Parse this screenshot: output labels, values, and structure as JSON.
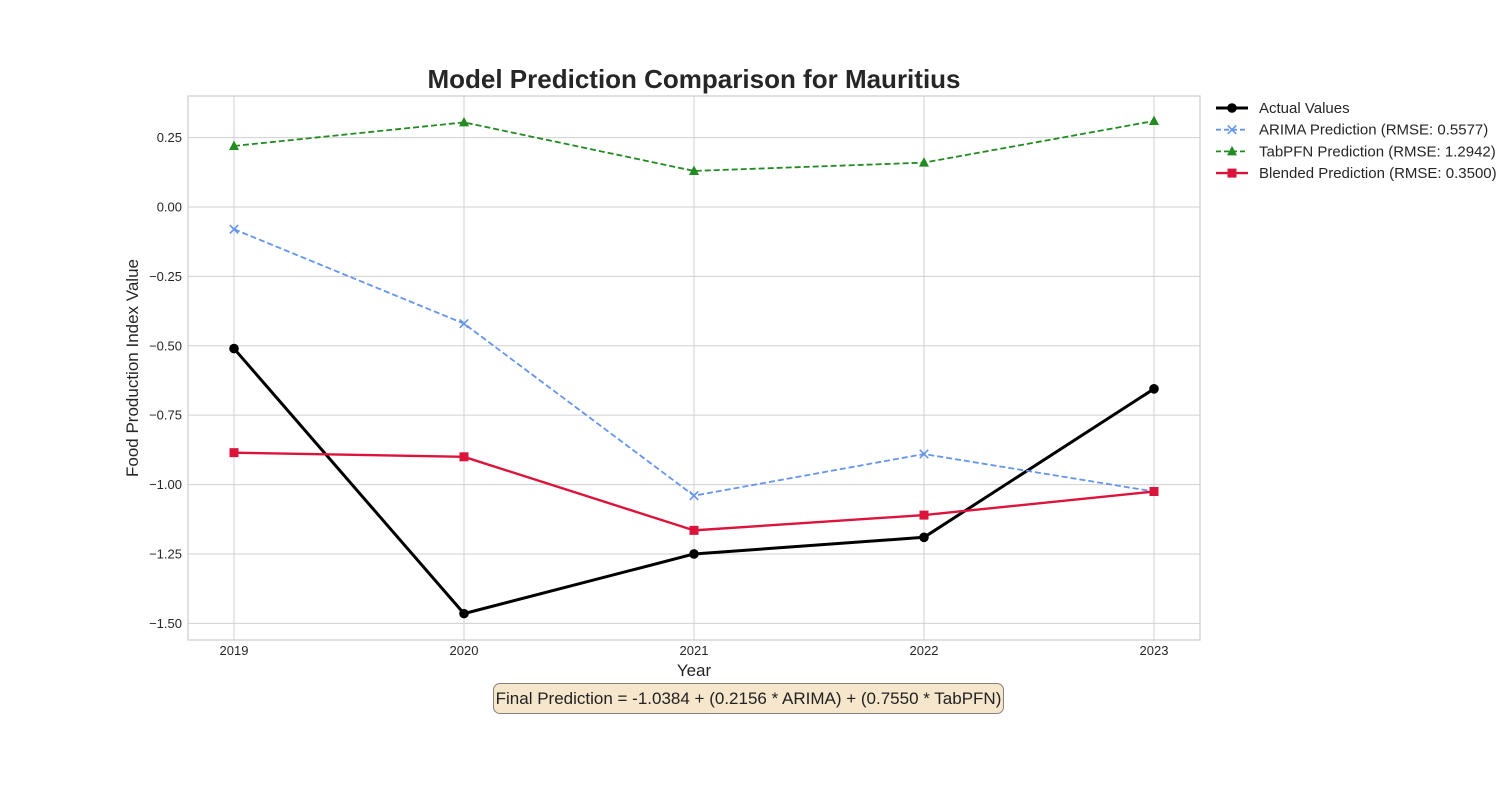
{
  "chart_data": {
    "type": "line",
    "title": "Model Prediction Comparison for Mauritius",
    "xlabel": "Year",
    "ylabel": "Food Production Index Value",
    "x": [
      2019,
      2020,
      2021,
      2022,
      2023
    ],
    "x_tick_labels": [
      "2019",
      "2020",
      "2021",
      "2022",
      "2023"
    ],
    "xlim": [
      2018.8,
      2023.2
    ],
    "ylim": [
      -1.56,
      0.4
    ],
    "y_ticks": [
      0.25,
      0.0,
      -0.25,
      -0.5,
      -0.75,
      -1.0,
      -1.25,
      -1.5
    ],
    "y_tick_labels": [
      "0.25",
      "0.00",
      "−0.25",
      "−0.50",
      "−0.75",
      "−1.00",
      "−1.25",
      "−1.50"
    ],
    "grid": true,
    "legend_position": "outside-top-right",
    "series": [
      {
        "name": "Actual Values",
        "values": [
          -0.51,
          -1.465,
          -1.25,
          -1.19,
          -0.655
        ],
        "color": "#000000",
        "line_style": "solid",
        "marker": "circle"
      },
      {
        "name": "ARIMA Prediction (RMSE: 0.5577)",
        "values": [
          -0.08,
          -0.42,
          -1.04,
          -0.89,
          -1.025
        ],
        "color": "#6495ed",
        "line_style": "dashed",
        "marker": "x"
      },
      {
        "name": "TabPFN Prediction (RMSE: 1.2942)",
        "values": [
          0.22,
          0.305,
          0.13,
          0.16,
          0.31
        ],
        "color": "#228b22",
        "line_style": "dashed",
        "marker": "triangle"
      },
      {
        "name": "Blended Prediction (RMSE: 0.3500)",
        "values": [
          -0.885,
          -0.9,
          -1.165,
          -1.11,
          -1.025
        ],
        "color": "#dc143c",
        "line_style": "solid",
        "marker": "square"
      }
    ],
    "annotation": "Final Prediction = -1.0384 + (0.2156 * ARIMA) + (0.7550 * TabPFN)"
  }
}
